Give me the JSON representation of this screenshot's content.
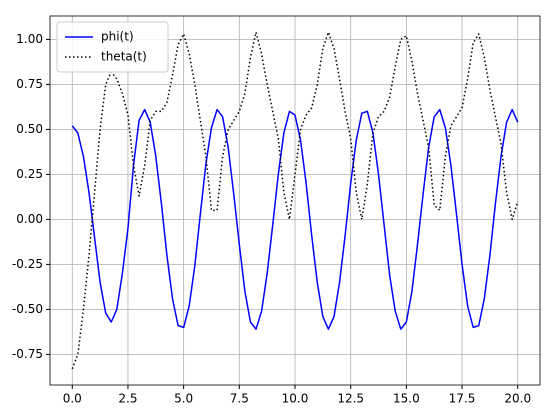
{
  "chart_data": {
    "type": "line",
    "x": [
      0,
      0.25,
      0.5,
      0.75,
      1,
      1.25,
      1.5,
      1.75,
      2,
      2.25,
      2.5,
      2.75,
      3,
      3.25,
      3.5,
      3.75,
      4,
      4.25,
      4.5,
      4.75,
      5,
      5.25,
      5.5,
      5.75,
      6,
      6.25,
      6.5,
      6.75,
      7,
      7.25,
      7.5,
      7.75,
      8,
      8.25,
      8.5,
      8.75,
      9,
      9.25,
      9.5,
      9.75,
      10,
      10.25,
      10.5,
      10.75,
      11,
      11.25,
      11.5,
      11.75,
      12,
      12.25,
      12.5,
      12.75,
      13,
      13.25,
      13.5,
      13.75,
      14,
      14.25,
      14.5,
      14.75,
      15,
      15.25,
      15.5,
      15.75,
      16,
      16.25,
      16.5,
      16.75,
      17,
      17.25,
      17.5,
      17.75,
      18,
      18.25,
      18.5,
      18.75,
      19,
      19.25,
      19.5,
      19.75,
      20
    ],
    "series": [
      {
        "name": "phi(t)",
        "color": "#0000ff",
        "linestyle": "solid",
        "values": [
          0.52,
          0.48,
          0.35,
          0.15,
          -0.1,
          -0.35,
          -0.52,
          -0.57,
          -0.5,
          -0.3,
          -0.05,
          0.3,
          0.55,
          0.61,
          0.54,
          0.35,
          0.09,
          -0.2,
          -0.44,
          -0.59,
          -0.6,
          -0.48,
          -0.26,
          0.03,
          0.31,
          0.51,
          0.61,
          0.57,
          0.4,
          0.14,
          -0.14,
          -0.4,
          -0.57,
          -0.61,
          -0.51,
          -0.3,
          -0.03,
          0.25,
          0.48,
          0.6,
          0.58,
          0.44,
          0.2,
          -0.09,
          -0.35,
          -0.54,
          -0.61,
          -0.54,
          -0.35,
          -0.09,
          0.2,
          0.44,
          0.59,
          0.6,
          0.48,
          0.25,
          -0.03,
          -0.31,
          -0.51,
          -0.61,
          -0.57,
          -0.4,
          -0.14,
          0.14,
          0.4,
          0.57,
          0.61,
          0.51,
          0.3,
          0.03,
          -0.25,
          -0.48,
          -0.6,
          -0.59,
          -0.44,
          -0.2,
          0.09,
          0.35,
          0.54,
          0.61,
          0.54
        ]
      },
      {
        "name": "theta(t)",
        "color": "#000000",
        "linestyle": "dotted",
        "values": [
          -0.83,
          -0.75,
          -0.5,
          -0.2,
          0.15,
          0.5,
          0.75,
          0.82,
          0.78,
          0.7,
          0.58,
          0.3,
          0.13,
          0.3,
          0.55,
          0.6,
          0.6,
          0.65,
          0.8,
          0.97,
          1.03,
          0.92,
          0.75,
          0.55,
          0.35,
          0.05,
          0.05,
          0.35,
          0.5,
          0.55,
          0.6,
          0.7,
          0.9,
          1.04,
          0.92,
          0.75,
          0.6,
          0.45,
          0.15,
          0.0,
          0.25,
          0.5,
          0.58,
          0.62,
          0.75,
          0.95,
          1.04,
          0.95,
          0.78,
          0.6,
          0.45,
          0.15,
          0.0,
          0.2,
          0.48,
          0.57,
          0.6,
          0.68,
          0.85,
          1.0,
          1.02,
          0.88,
          0.7,
          0.55,
          0.4,
          0.08,
          0.05,
          0.35,
          0.52,
          0.57,
          0.62,
          0.78,
          0.98,
          1.03,
          0.9,
          0.72,
          0.57,
          0.42,
          0.15,
          0.0,
          0.1
        ]
      }
    ],
    "xlim": [
      -1,
      21
    ],
    "xticks": [
      {
        "value": 0,
        "label": "0.0"
      },
      2.5,
      {
        "value": 5,
        "label": "5.0"
      },
      7.5,
      {
        "value": 10,
        "label": "10.0"
      },
      12.5,
      {
        "value": 15,
        "label": "15.0"
      },
      17.5,
      {
        "value": 20,
        "label": "20.0"
      }
    ],
    "ylim": [
      -0.92,
      1.13
    ],
    "yticks": [
      -0.75,
      {
        "value": -0.5,
        "label": "-0.50"
      },
      -0.25,
      {
        "value": 0,
        "label": "0.00"
      },
      0.25,
      {
        "value": 0.5,
        "label": "0.50"
      },
      0.75,
      {
        "value": 1,
        "label": "1.00"
      }
    ],
    "grid": true,
    "legend": "upper left"
  }
}
